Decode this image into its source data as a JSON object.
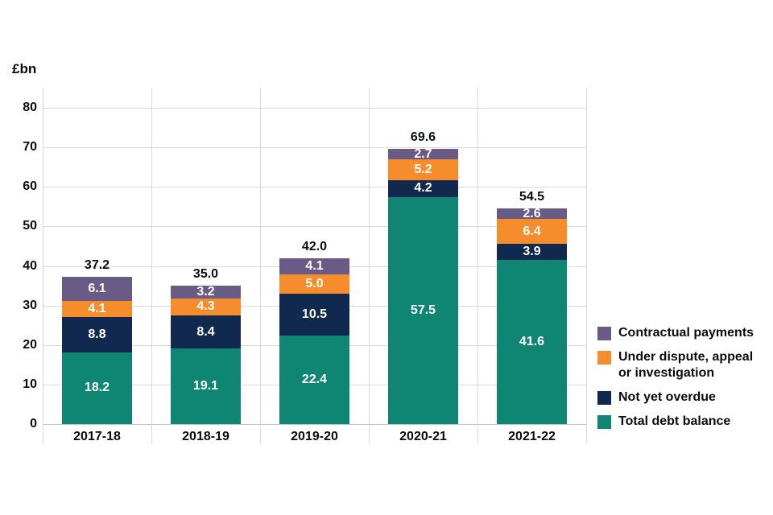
{
  "chart_data": {
    "type": "bar",
    "stacked": true,
    "title": "",
    "ylabel": "£bn",
    "xlabel": "",
    "ylim": [
      0,
      85
    ],
    "yticks": [
      0,
      10,
      20,
      30,
      40,
      50,
      60,
      70,
      80
    ],
    "grid": true,
    "legend_position": "right",
    "categories": [
      "2017-18",
      "2018-19",
      "2019-20",
      "2020-21",
      "2021-22"
    ],
    "series": [
      {
        "name": "Total debt balance",
        "color": "#0F8573",
        "values": [
          "18.2",
          "19.1",
          "22.4",
          "57.5",
          "41.6"
        ]
      },
      {
        "name": "Not yet overdue",
        "color": "#12294F",
        "values": [
          "8.8",
          "8.4",
          "10.5",
          "4.2",
          "3.9"
        ]
      },
      {
        "name": "Under dispute, appeal or investigation",
        "color": "#F68D2D",
        "values": [
          "4.1",
          "4.3",
          "5.0",
          "5.2",
          "6.4"
        ]
      },
      {
        "name": "Contractual payments",
        "color": "#6A5A86",
        "values": [
          "6.1",
          "3.2",
          "4.1",
          "2.7",
          "2.6"
        ]
      }
    ],
    "totals": [
      "37.2",
      "35.0",
      "42.0",
      "69.6",
      "54.5"
    ],
    "legend": [
      {
        "label": "Contractual payments",
        "color": "#6A5A86"
      },
      {
        "label": "Under dispute, appeal or investigation",
        "color": "#F68D2D"
      },
      {
        "label": "Not yet overdue",
        "color": "#12294F"
      },
      {
        "label": "Total debt balance",
        "color": "#0F8573"
      }
    ]
  }
}
